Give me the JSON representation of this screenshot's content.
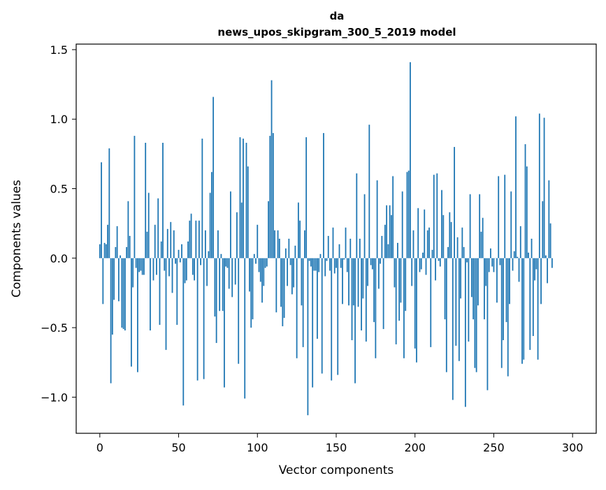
{
  "chart_data": {
    "type": "bar",
    "title_line1": "da",
    "title_line2": "news_upos_skipgram_300_5_2019 model",
    "xlabel": "Vector components",
    "ylabel": "Components values",
    "xlim": [
      -15,
      315
    ],
    "ylim": [
      -1.26,
      1.54
    ],
    "x_ticks": [
      {
        "value": 0,
        "label": "0"
      },
      {
        "value": 50,
        "label": "50"
      },
      {
        "value": 100,
        "label": "100"
      },
      {
        "value": 150,
        "label": "150"
      },
      {
        "value": 200,
        "label": "200"
      },
      {
        "value": 250,
        "label": "250"
      },
      {
        "value": 300,
        "label": "300"
      }
    ],
    "y_ticks": [
      {
        "value": -1.0,
        "label": "−1.0"
      },
      {
        "value": -0.5,
        "label": "−0.5"
      },
      {
        "value": 0.0,
        "label": "0.0"
      },
      {
        "value": 0.5,
        "label": "0.5"
      },
      {
        "value": 1.0,
        "label": "1.0"
      },
      {
        "value": 1.5,
        "label": "1.5"
      }
    ],
    "bar_color": "#1f77b4",
    "values": [
      0.1,
      0.69,
      -0.33,
      0.11,
      0.1,
      0.24,
      0.79,
      -0.9,
      -0.55,
      -0.3,
      0.08,
      0.23,
      -0.31,
      0.02,
      -0.5,
      -0.51,
      -0.52,
      0.08,
      0.41,
      0.16,
      -0.78,
      -0.21,
      0.88,
      -0.07,
      -0.82,
      -0.1,
      -0.09,
      -0.12,
      -0.12,
      0.83,
      0.19,
      0.47,
      -0.52,
      0.0,
      -0.16,
      0.24,
      -0.12,
      0.43,
      -0.48,
      0.12,
      0.83,
      -0.09,
      -0.66,
      0.21,
      -0.13,
      0.26,
      -0.25,
      0.2,
      -0.04,
      -0.48,
      0.06,
      -0.03,
      0.1,
      -1.06,
      -0.18,
      -0.16,
      0.12,
      0.27,
      0.32,
      -0.12,
      -0.16,
      0.27,
      -0.88,
      0.27,
      -0.05,
      0.86,
      -0.87,
      0.2,
      -0.2,
      0.05,
      0.47,
      0.62,
      1.16,
      -0.42,
      -0.61,
      0.2,
      -0.38,
      0.03,
      -0.38,
      -0.93,
      -0.06,
      -0.07,
      -0.22,
      0.48,
      -0.28,
      0.0,
      -0.19,
      0.33,
      -0.76,
      0.87,
      0.4,
      0.86,
      -1.01,
      0.83,
      0.66,
      -0.24,
      -0.5,
      -0.44,
      0.03,
      -0.04,
      0.24,
      -0.1,
      -0.17,
      -0.32,
      -0.2,
      -0.07,
      -0.06,
      0.41,
      0.88,
      1.28,
      0.9,
      0.2,
      -0.39,
      0.2,
      0.14,
      -0.35,
      -0.49,
      -0.43,
      0.07,
      -0.2,
      0.14,
      -0.05,
      -0.26,
      -0.21,
      0.09,
      -0.72,
      0.4,
      0.27,
      -0.34,
      -0.64,
      0.2,
      0.87,
      -1.13,
      -0.02,
      -0.06,
      -0.93,
      -0.09,
      -0.09,
      -0.58,
      -0.1,
      0.03,
      -0.83,
      0.9,
      -0.13,
      -0.02,
      0.16,
      -0.09,
      -0.88,
      0.22,
      -0.11,
      -0.07,
      -0.84,
      0.1,
      -0.07,
      -0.33,
      -0.01,
      0.22,
      -0.1,
      -0.34,
      0.14,
      -0.59,
      -0.34,
      -0.9,
      0.61,
      -0.35,
      0.14,
      -0.52,
      -0.29,
      0.46,
      -0.6,
      -0.2,
      0.96,
      -0.05,
      -0.08,
      -0.46,
      -0.72,
      0.56,
      -0.22,
      -0.04,
      0.16,
      -0.51,
      0.24,
      0.38,
      0.1,
      0.38,
      0.31,
      0.59,
      -0.21,
      -0.62,
      0.11,
      -0.45,
      -0.32,
      0.48,
      -0.72,
      -0.38,
      0.62,
      0.63,
      1.41,
      -0.2,
      0.2,
      -0.65,
      -0.75,
      0.36,
      -0.1,
      -0.08,
      0.04,
      0.35,
      -0.12,
      0.2,
      0.22,
      -0.64,
      0.06,
      0.6,
      -0.16,
      0.61,
      -0.02,
      -0.06,
      0.49,
      0.31,
      -0.44,
      -0.82,
      0.08,
      0.33,
      0.26,
      -1.02,
      0.8,
      -0.63,
      0.15,
      -0.74,
      -0.29,
      0.22,
      0.08,
      -1.07,
      -0.03,
      -0.6,
      0.46,
      -0.28,
      -0.44,
      -0.79,
      -0.82,
      -0.34,
      0.46,
      0.19,
      0.29,
      -0.44,
      -0.2,
      -0.95,
      -0.1,
      0.07,
      -0.06,
      -0.1,
      0.0,
      -0.32,
      0.59,
      -0.05,
      -0.79,
      -0.59,
      0.6,
      -0.46,
      -0.85,
      -0.33,
      0.48,
      -0.09,
      0.05,
      1.02,
      0.01,
      -0.17,
      0.23,
      -0.76,
      -0.73,
      0.82,
      0.66,
      0.04,
      -0.66,
      0.14,
      -0.56,
      -0.16,
      -0.08,
      -0.73,
      1.04,
      -0.33,
      0.41,
      1.01,
      0.02,
      -0.18,
      0.56,
      0.25,
      -0.07
    ]
  }
}
